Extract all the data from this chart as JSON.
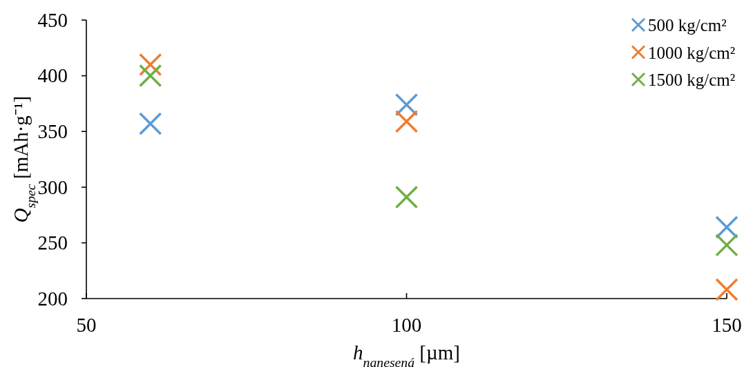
{
  "chart_data": {
    "type": "scatter",
    "xlabel": "h$_{nanesená}$ [µm]",
    "ylabel": "Q$_{spec}$ [mAh·g⁻¹]",
    "x": [
      60,
      100,
      150
    ],
    "xlim": [
      50,
      150
    ],
    "xticks": [
      50,
      100,
      150
    ],
    "ylim": [
      200,
      450
    ],
    "yticks": [
      200,
      250,
      300,
      350,
      400,
      450
    ],
    "marker": "cross",
    "legend": "top right",
    "series": [
      {
        "name": "500 kg/cm²",
        "color": "#5b9bd5",
        "values": [
          357,
          374,
          264
        ]
      },
      {
        "name": "1000 kg/cm²",
        "color": "#ed7d31",
        "values": [
          410,
          359,
          208
        ]
      },
      {
        "name": "1500 kg/cm²",
        "color": "#70ad47",
        "values": [
          400,
          291,
          248
        ]
      }
    ]
  }
}
